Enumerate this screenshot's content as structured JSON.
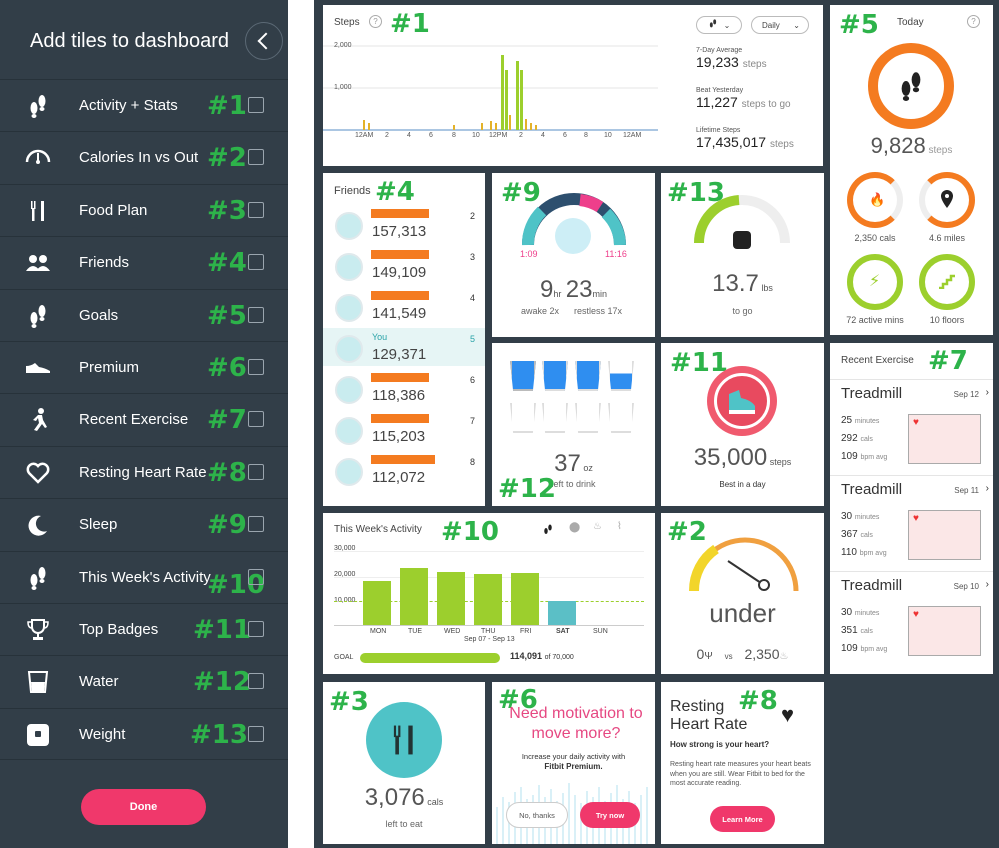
{
  "sidebar": {
    "title": "Add tiles to dashboard",
    "done_label": "Done",
    "items": [
      {
        "label": "Activity + Stats",
        "num": "#1",
        "icon": "footsteps-icon"
      },
      {
        "label": "Calories In vs Out",
        "num": "#2",
        "icon": "gauge-icon"
      },
      {
        "label": "Food Plan",
        "num": "#3",
        "icon": "fork-knife-icon"
      },
      {
        "label": "Friends",
        "num": "#4",
        "icon": "friends-icon"
      },
      {
        "label": "Goals",
        "num": "#5",
        "icon": "footsteps-icon"
      },
      {
        "label": "Premium",
        "num": "#6",
        "icon": "shoe-icon"
      },
      {
        "label": "Recent Exercise",
        "num": "#7",
        "icon": "runner-icon"
      },
      {
        "label": "Resting Heart Rate",
        "num": "#8",
        "icon": "heart-icon"
      },
      {
        "label": "Sleep",
        "num": "#9",
        "icon": "moon-icon"
      },
      {
        "label": "This Week's Activity",
        "num": "#10",
        "icon": "footsteps-icon"
      },
      {
        "label": "Top Badges",
        "num": "#11",
        "icon": "trophy-icon"
      },
      {
        "label": "Water",
        "num": "#12",
        "icon": "glass-icon"
      },
      {
        "label": "Weight",
        "num": "#13",
        "icon": "scale-icon"
      }
    ]
  },
  "tiles": {
    "steps": {
      "num": "#1",
      "title": "Steps",
      "filter": "Daily",
      "y_ticks": [
        "2,000",
        "1,000"
      ],
      "x_ticks": [
        "12AM",
        "2",
        "4",
        "6",
        "8",
        "10",
        "12PM",
        "2",
        "4",
        "6",
        "8",
        "10",
        "12AM"
      ],
      "avg_label": "7-Day Average",
      "avg_value": "19,233",
      "avg_unit": "steps",
      "beat_label": "Beat Yesterday",
      "beat_value": "11,227",
      "beat_unit": "steps to go",
      "life_label": "Lifetime Steps",
      "life_value": "17,435,017",
      "life_unit": "steps"
    },
    "today": {
      "num": "#5",
      "title": "Today",
      "steps_value": "9,828",
      "steps_unit": "steps",
      "cals": "2,350 cals",
      "miles": "4.6 miles",
      "active": "72 active mins",
      "floors": "10 floors"
    },
    "friends": {
      "num": "#4",
      "title": "Friends",
      "rows": [
        {
          "score": "157,313",
          "rank": "2",
          "name": ""
        },
        {
          "score": "149,109",
          "rank": "3",
          "name": ""
        },
        {
          "score": "141,549",
          "rank": "4",
          "name": ""
        },
        {
          "score": "129,371",
          "rank": "5",
          "name": "You"
        },
        {
          "score": "118,386",
          "rank": "6",
          "name": ""
        },
        {
          "score": "115,203",
          "rank": "7",
          "name": ""
        },
        {
          "score": "112,072",
          "rank": "8",
          "name": ""
        }
      ]
    },
    "sleep": {
      "num": "#9",
      "start": "1:09",
      "end": "11:16",
      "hr": "9",
      "hr_unit": "hr",
      "min": "23",
      "min_unit": "min",
      "awake": "awake 2x",
      "restless": "restless 17x"
    },
    "weight": {
      "num": "#13",
      "value": "13.7",
      "unit": "lbs",
      "sub": "to go"
    },
    "water": {
      "num": "#12",
      "value": "37",
      "unit": "oz",
      "sub": "left to drink"
    },
    "badges": {
      "num": "#11",
      "value": "35,000",
      "unit": "steps",
      "sub": "Best in a day"
    },
    "week": {
      "num": "#10",
      "title": "This Week's Activity",
      "y_ticks": [
        "30,000",
        "20,000",
        "10,000"
      ],
      "days": [
        "MON",
        "TUE",
        "WED",
        "THU",
        "FRI",
        "SAT",
        "SUN"
      ],
      "range": "Sep 07 - Sep 13",
      "goal_label": "GOAL",
      "goal_value": "114,091",
      "goal_of": "of 70,000"
    },
    "calories": {
      "num": "#2",
      "status": "under",
      "in_value": "0",
      "vs": "vs",
      "out_value": "2,350"
    },
    "recent": {
      "num": "#7",
      "title": "Recent Exercise",
      "items": [
        {
          "name": "Treadmill",
          "date": "Sep 12",
          "mins": "25",
          "cals": "292",
          "bpm": "109"
        },
        {
          "name": "Treadmill",
          "date": "Sep 11",
          "mins": "30",
          "cals": "367",
          "bpm": "110"
        },
        {
          "name": "Treadmill",
          "date": "Sep 10",
          "mins": "30",
          "cals": "351",
          "bpm": "109"
        }
      ],
      "mins_unit": "minutes",
      "cals_unit": "cals",
      "bpm_unit": "bpm avg"
    },
    "food": {
      "num": "#3",
      "value": "3,076",
      "unit": "cals",
      "sub": "left to eat"
    },
    "premium": {
      "num": "#6",
      "headline": "Need motivation to move more?",
      "body": "Increase your daily activity with",
      "brand": "Fitbit Premium.",
      "no_label": "No, thanks",
      "yes_label": "Try now"
    },
    "heart": {
      "num": "#8",
      "title_1": "Resting",
      "title_2": "Heart Rate",
      "question": "How strong is your heart?",
      "body": "Resting heart rate measures your heart beats when you are still. Wear Fitbit to bed for the most accurate reading.",
      "learn": "Learn More"
    }
  },
  "colors": {
    "accent_green": "#9ccf2d",
    "accent_orange": "#f47b20",
    "pink": "#f0386b",
    "teal": "#4fc3c7",
    "annotation": "#2db34a"
  }
}
